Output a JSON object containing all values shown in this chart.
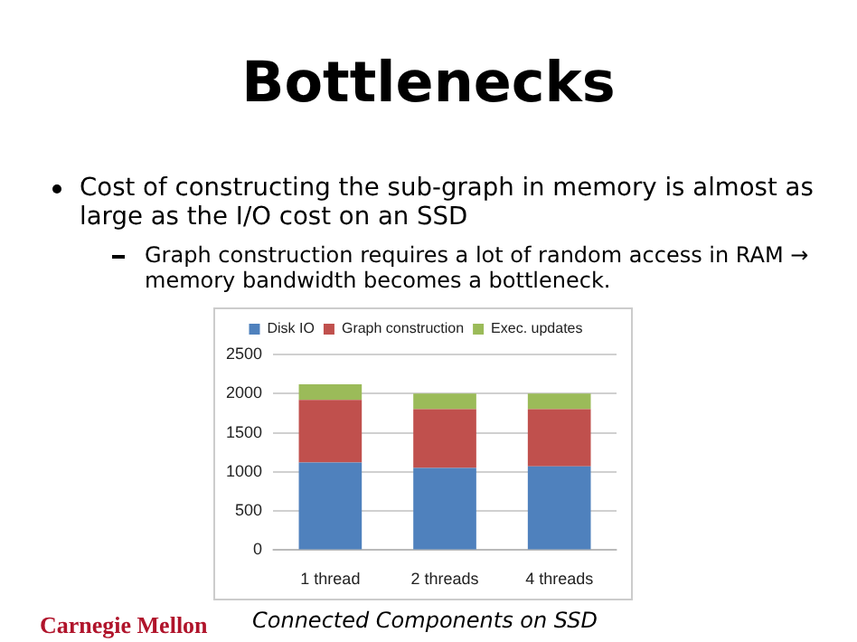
{
  "chart_data": {
    "type": "bar",
    "title": "Bottlenecks",
    "stacked": true,
    "categories": [
      "1 thread",
      "2 threads",
      "4 threads"
    ],
    "series": [
      {
        "name": "Disk IO",
        "color": "#4f81bd",
        "values": [
          1120,
          1050,
          1070
        ]
      },
      {
        "name": "Graph construction",
        "color": "#c0504d",
        "values": [
          800,
          750,
          730
        ]
      },
      {
        "name": "Exec. updates",
        "color": "#9bbb59",
        "values": [
          200,
          200,
          200
        ]
      }
    ],
    "ylim": [
      0,
      2500
    ],
    "yticks": [
      0,
      500,
      1000,
      1500,
      2000,
      2500
    ],
    "grid": "y",
    "legend": "top",
    "annotations": [
      "Cost of constructing the sub-graph in memory is almost as large as the I/O cost on an SSD",
      "Graph construction requires a lot of random access in RAM → memory bandwidth becomes a bottleneck.",
      "Connected Components on SSD",
      "Carnegie Mellon"
    ]
  }
}
